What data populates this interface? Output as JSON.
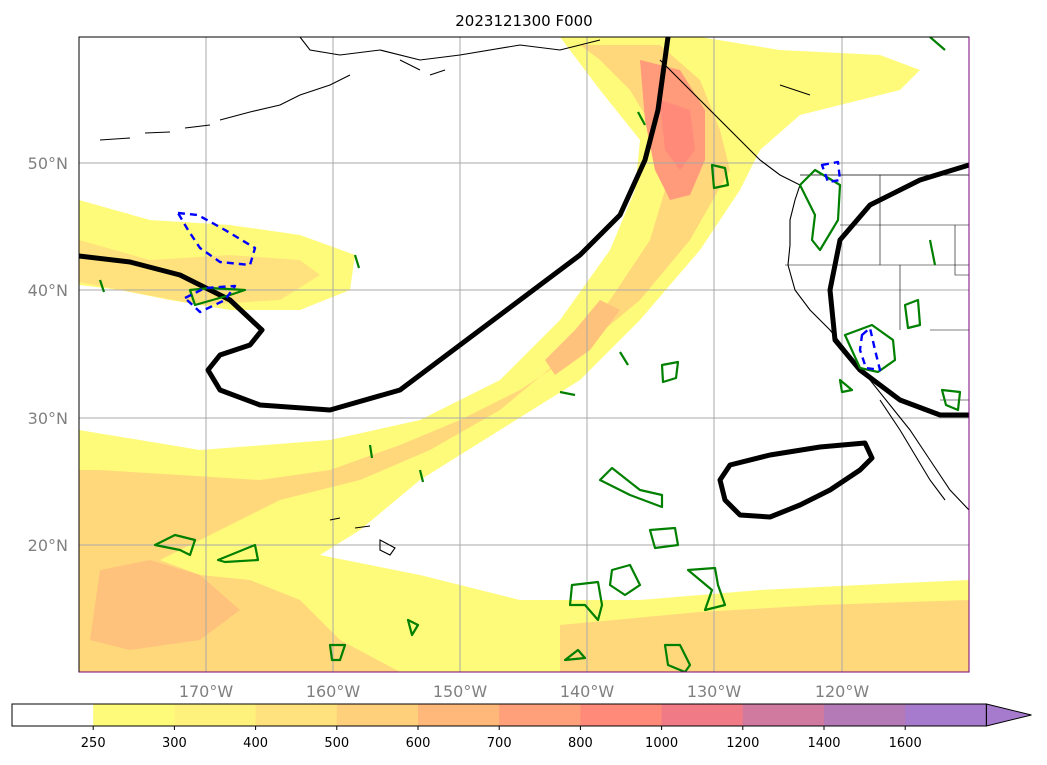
{
  "title": "2023121300 F000",
  "lon_labels": [
    "170°W",
    "160°W",
    "150°W",
    "140°W",
    "130°W",
    "120°W"
  ],
  "lat_labels": [
    "50°N",
    "40°N",
    "30°N",
    "20°N"
  ],
  "colorbar": {
    "ticks": [
      "250",
      "300",
      "400",
      "500",
      "600",
      "700",
      "800",
      "1000",
      "1200",
      "1400",
      "1600"
    ],
    "colors": [
      "#ffffff",
      "#fffb7a",
      "#fff27c",
      "#ffe27d",
      "#ffd07c",
      "#ffb87a",
      "#ffa07a",
      "#ff8a7a",
      "#f07a86",
      "#d07aa0",
      "#b47ab8",
      "#a67acc"
    ],
    "extend": "max"
  },
  "contour_colors": {
    "height_contour": "#000000",
    "positive_contour": "#008000",
    "negative_contour": "#0000ff"
  },
  "map": {
    "projection": "cylindrical",
    "lon_range_deg": [
      -180,
      -110
    ],
    "lat_range_deg": [
      10,
      60
    ],
    "gridlines": true
  }
}
